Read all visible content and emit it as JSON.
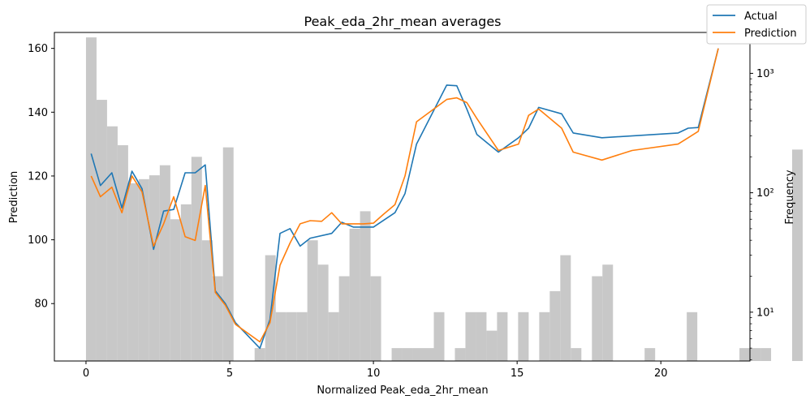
{
  "chart_data": {
    "type": "line",
    "title": "Peak_eda_2hr_mean averages",
    "xlabel": "Normalized Peak_eda_2hr_mean",
    "ylabel": "Prediction",
    "y2label": "Frequency",
    "xlim": [
      -1.1,
      23.1
    ],
    "ylim": [
      62,
      165
    ],
    "y2lim": [
      3.9,
      2200
    ],
    "y2scale": "log",
    "x_ticks": [
      0,
      5,
      10,
      15,
      20
    ],
    "y_ticks": [
      80,
      100,
      120,
      140,
      160
    ],
    "y2_ticks": [
      {
        "value": 10,
        "label": "10¹"
      },
      {
        "value": 100,
        "label": "10²"
      },
      {
        "value": 1000,
        "label": "10³"
      }
    ],
    "grid": false,
    "legend": {
      "location": "top-right",
      "entries": [
        "Actual",
        "Prediction"
      ]
    },
    "series": [
      {
        "name": "Actual",
        "color": "#1f77b4",
        "x": [
          0.18,
          0.5,
          0.9,
          1.25,
          1.6,
          1.95,
          2.35,
          2.7,
          3.05,
          3.45,
          3.8,
          4.15,
          4.5,
          4.85,
          5.2,
          6.05,
          6.4,
          6.75,
          7.1,
          7.45,
          7.8,
          8.55,
          8.9,
          9.3,
          9.65,
          10.0,
          10.75,
          11.1,
          11.5,
          12.55,
          12.9,
          13.25,
          13.6,
          14.35,
          15.05,
          15.4,
          15.75,
          16.55,
          16.95,
          17.95,
          20.6,
          20.95,
          21.3,
          22.0
        ],
        "y": [
          127,
          117,
          121,
          110,
          121.5,
          116,
          97,
          109,
          109.5,
          121,
          121,
          123.5,
          84,
          80,
          74,
          66,
          75,
          102,
          103.5,
          98,
          100.5,
          102,
          105.5,
          104,
          104,
          104,
          108.5,
          114.5,
          130,
          148.5,
          148.3,
          141,
          133,
          127.5,
          132,
          135,
          141.5,
          139.5,
          133.5,
          132,
          133.5,
          135,
          135.2,
          160
        ]
      },
      {
        "name": "Prediction",
        "color": "#ff7f0e",
        "x": [
          0.18,
          0.5,
          0.9,
          1.25,
          1.6,
          1.95,
          2.35,
          2.7,
          3.05,
          3.45,
          3.8,
          4.15,
          4.5,
          4.85,
          5.2,
          6.05,
          6.4,
          6.75,
          7.1,
          7.45,
          7.8,
          8.2,
          8.55,
          8.9,
          9.3,
          9.65,
          10.0,
          10.35,
          10.75,
          11.1,
          11.5,
          12.55,
          12.9,
          13.25,
          13.6,
          14.35,
          15.05,
          15.4,
          15.75,
          16.55,
          16.95,
          17.95,
          19.0,
          20.6,
          20.95,
          21.3,
          22.0
        ],
        "y": [
          120,
          113.5,
          116.5,
          108.5,
          120,
          115,
          98,
          105,
          113.5,
          101,
          99.8,
          117,
          83.5,
          79.5,
          73.5,
          68,
          74,
          92,
          99,
          105,
          106,
          105.8,
          108.5,
          105,
          105,
          105,
          105.2,
          108,
          111,
          120,
          137,
          144,
          144.5,
          143,
          138,
          128,
          130,
          139,
          141,
          135,
          127.5,
          125,
          128,
          130,
          132,
          134,
          160
        ]
      }
    ],
    "histogram": {
      "name": "Frequency",
      "color": "#c8c8c8",
      "bin_start": 0,
      "bin_width": 0.3667,
      "counts": [
        2000,
        600,
        360,
        250,
        120,
        130,
        140,
        170,
        60,
        80,
        200,
        40,
        20,
        240,
        0,
        0,
        5,
        30,
        10,
        10,
        10,
        40,
        25,
        10,
        20,
        50,
        70,
        20,
        0,
        5,
        5,
        5,
        5,
        10,
        0,
        5,
        10,
        10,
        7,
        10,
        0,
        10,
        0,
        10,
        15,
        30,
        5,
        0,
        20,
        25,
        0,
        0,
        0,
        5,
        0,
        0,
        0,
        10,
        0,
        0,
        0,
        0,
        5,
        5,
        5,
        0,
        0,
        230
      ]
    }
  }
}
